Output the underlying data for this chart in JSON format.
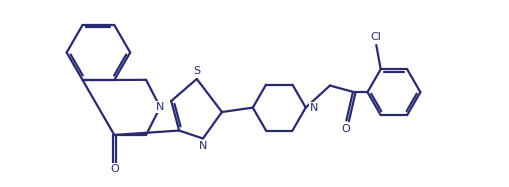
{
  "bg_color": "#ffffff",
  "line_color": "#2a2a6e",
  "line_width": 1.6,
  "figsize": [
    5.1,
    1.87
  ],
  "dpi": 100,
  "xlim": [
    0.0,
    10.2
  ],
  "ylim": [
    -0.5,
    3.74
  ]
}
